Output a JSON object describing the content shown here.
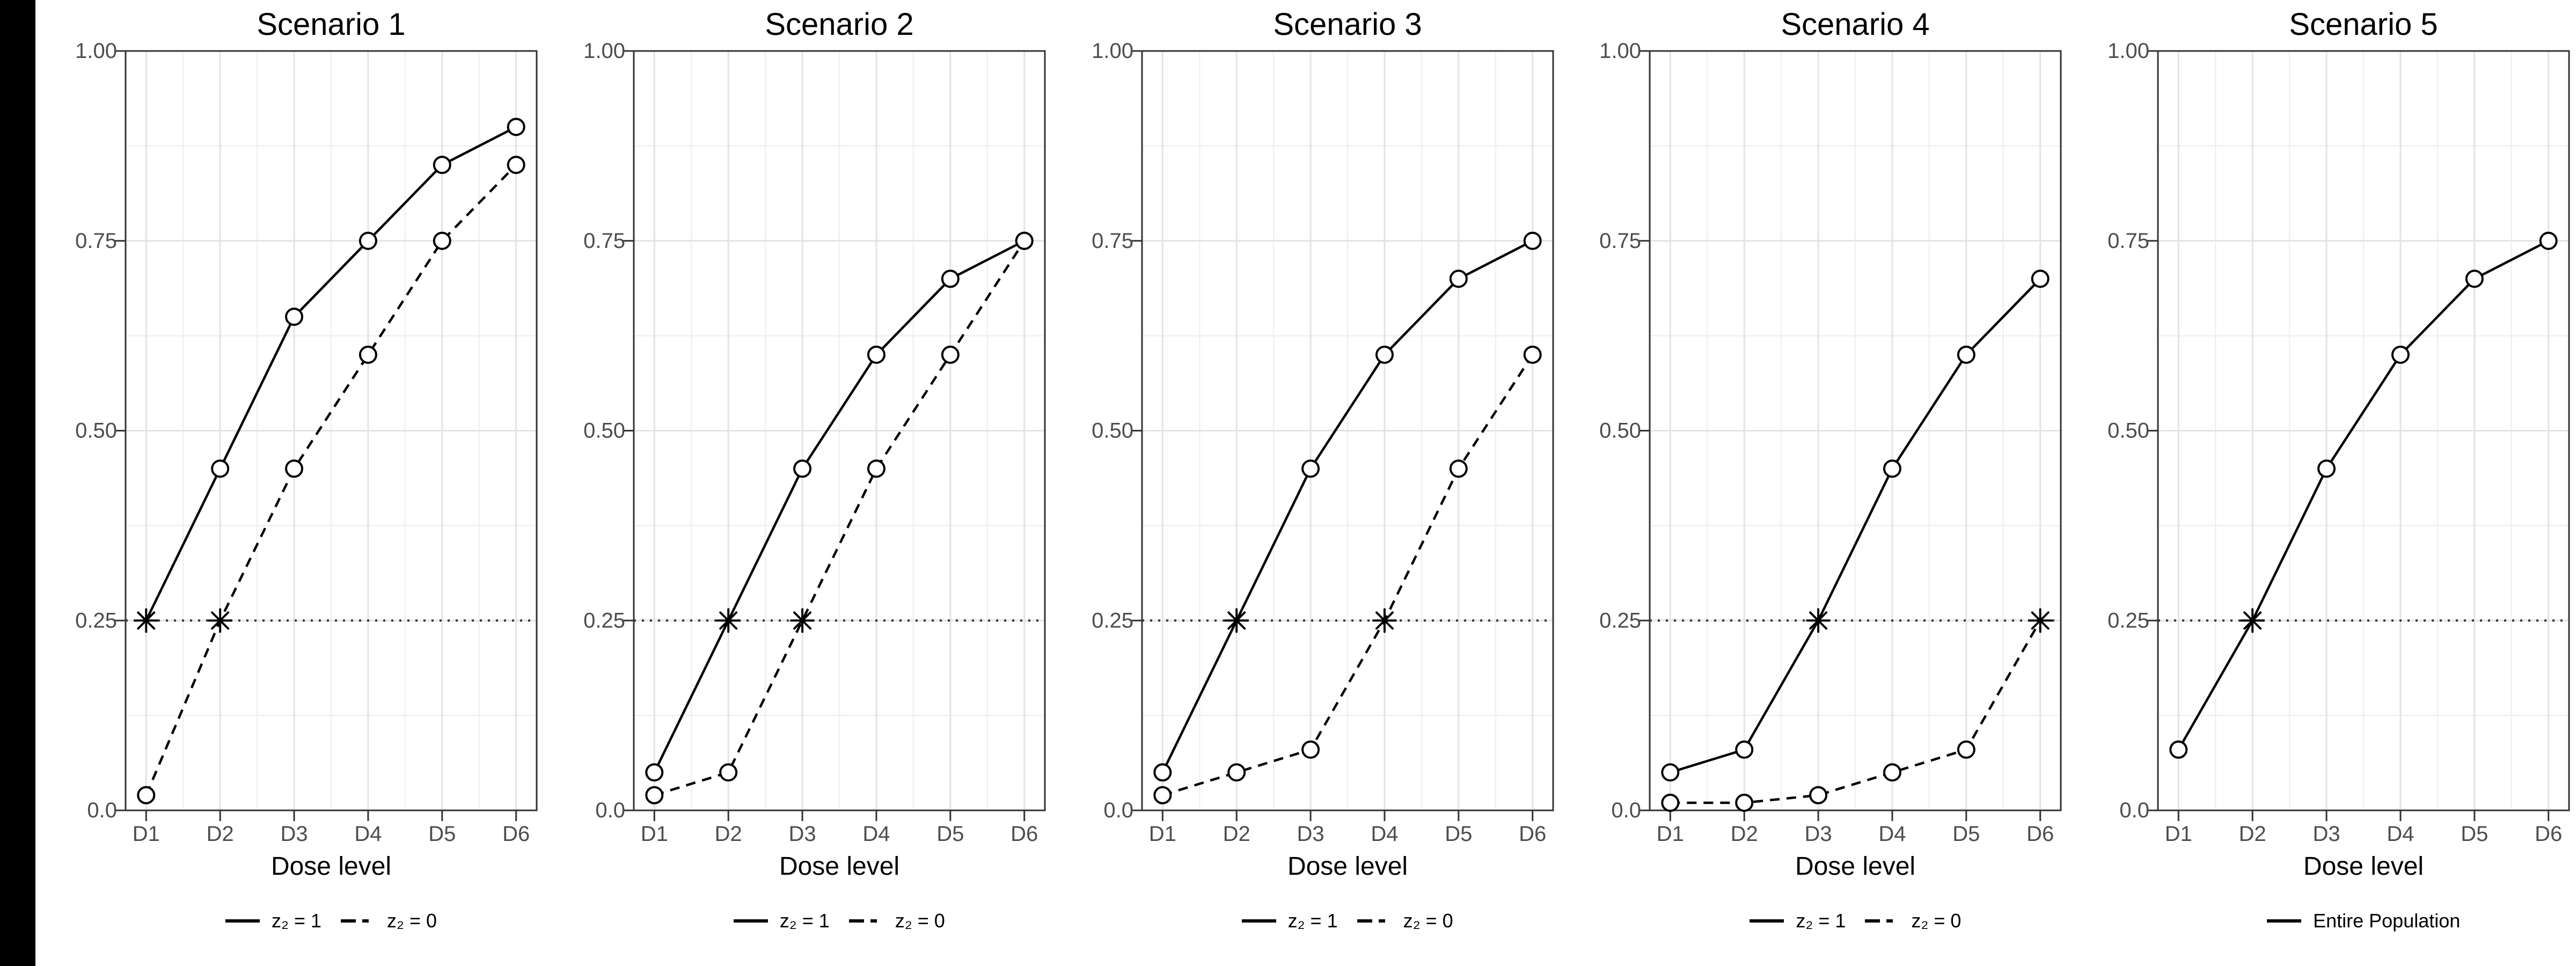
{
  "page": {
    "background": "#ffffff",
    "left_bar_color": "#000000"
  },
  "chart_data": {
    "type": "line",
    "layout": "5 side-by-side panels, shared style",
    "categories": [
      "D1",
      "D2",
      "D3",
      "D4",
      "D5",
      "D6"
    ],
    "xlabel": "Dose level",
    "ylim": [
      0,
      1
    ],
    "ytick_labels": [
      "0.0",
      "0.25",
      "0.50",
      "0.75",
      "1.00"
    ],
    "ytick_values": [
      0,
      0.25,
      0.5,
      0.75,
      1
    ],
    "grid": "major and minor gridlines on white background",
    "legend_position": "bottom center of each panel",
    "target_dotted_line": 0.25,
    "marker_note": "open circles at data points; asterisk marks the dose where the curve crosses the 0.25 target line",
    "panels": [
      {
        "title": "Scenario 1",
        "series": [
          {
            "name": "z₂ = 1",
            "line": "solid",
            "values": [
              0.25,
              0.45,
              0.65,
              0.75,
              0.85,
              0.9
            ],
            "star_at": "D1"
          },
          {
            "name": "z₂ = 0",
            "line": "dashed",
            "values": [
              0.02,
              0.25,
              0.45,
              0.6,
              0.75,
              0.85
            ],
            "star_at": "D2"
          }
        ]
      },
      {
        "title": "Scenario 2",
        "series": [
          {
            "name": "z₂ = 1",
            "line": "solid",
            "values": [
              0.05,
              0.25,
              0.45,
              0.6,
              0.7,
              0.75
            ],
            "star_at": "D2"
          },
          {
            "name": "z₂ = 0",
            "line": "dashed",
            "values": [
              0.02,
              0.05,
              0.25,
              0.45,
              0.6,
              0.75
            ],
            "star_at": "D3"
          }
        ]
      },
      {
        "title": "Scenario 3",
        "series": [
          {
            "name": "z₂ = 1",
            "line": "solid",
            "values": [
              0.05,
              0.25,
              0.45,
              0.6,
              0.7,
              0.75
            ],
            "star_at": "D2"
          },
          {
            "name": "z₂ = 0",
            "line": "dashed",
            "values": [
              0.02,
              0.05,
              0.08,
              0.25,
              0.45,
              0.6
            ],
            "star_at": "D4"
          }
        ]
      },
      {
        "title": "Scenario 4",
        "series": [
          {
            "name": "z₂ = 1",
            "line": "solid",
            "values": [
              0.05,
              0.08,
              0.25,
              0.45,
              0.6,
              0.7
            ],
            "star_at": "D3"
          },
          {
            "name": "z₂ = 0",
            "line": "dashed",
            "values": [
              0.01,
              0.01,
              0.02,
              0.05,
              0.08,
              0.25
            ],
            "star_at": "D6"
          }
        ]
      },
      {
        "title": "Scenario 5",
        "series": [
          {
            "name": "Entire Population",
            "line": "solid",
            "values": [
              0.08,
              0.25,
              0.45,
              0.6,
              0.7,
              0.75
            ],
            "star_at": "D2"
          }
        ]
      }
    ],
    "colors": {
      "line": "#000000",
      "grid_major": "#e3e3e3",
      "grid_minor": "#f0f0f0",
      "axis_text": "#4d4d4d",
      "panel_border": "#333333",
      "target_line": "#333333",
      "marker_fill": "#ffffff"
    }
  }
}
